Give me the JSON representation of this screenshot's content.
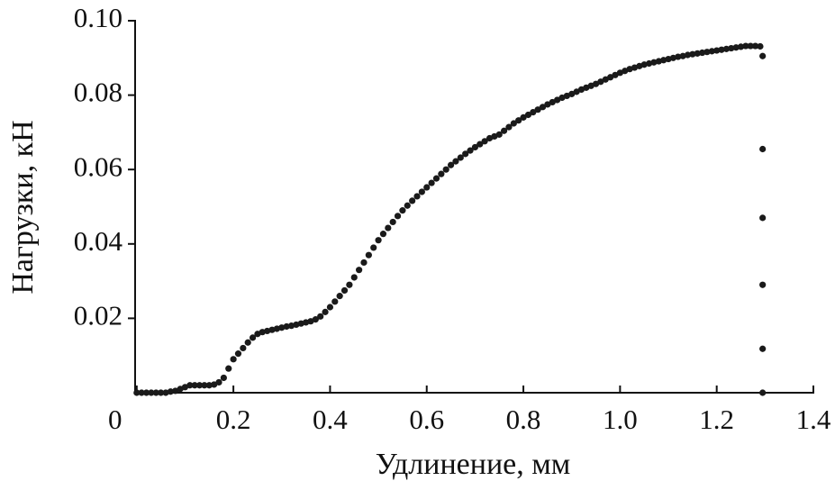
{
  "chart_data": {
    "type": "scatter",
    "xlabel": "Удлинение, мм",
    "ylabel": "Нагрузки, кН",
    "color": "#1a1a1a",
    "xlim": [
      0,
      1.4
    ],
    "xticks": [
      0,
      0.2,
      0.4,
      0.6,
      0.8,
      {
        "value": 1,
        "label": "1.0"
      },
      1.2,
      1.4
    ],
    "ylim": [
      0,
      0.1
    ],
    "yticks": [
      0.02,
      0.04,
      0.06,
      0.08,
      {
        "value": 0.1,
        "label": "0.10"
      }
    ],
    "x": [
      0,
      0.01,
      0.02,
      0.03,
      0.04,
      0.05,
      0.06,
      0.07,
      0.08,
      0.09,
      0.1,
      0.11,
      0.12,
      0.13,
      0.14,
      0.15,
      0.16,
      0.17,
      0.18,
      0.19,
      0.2,
      0.21,
      0.22,
      0.23,
      0.24,
      0.25,
      0.26,
      0.27,
      0.28,
      0.29,
      0.3,
      0.31,
      0.32,
      0.33,
      0.34,
      0.35,
      0.36,
      0.37,
      0.38,
      0.39,
      0.4,
      0.41,
      0.42,
      0.43,
      0.44,
      0.45,
      0.46,
      0.47,
      0.48,
      0.49,
      0.5,
      0.51,
      0.52,
      0.53,
      0.54,
      0.55,
      0.56,
      0.57,
      0.58,
      0.59,
      0.6,
      0.61,
      0.62,
      0.63,
      0.64,
      0.65,
      0.66,
      0.67,
      0.68,
      0.69,
      0.7,
      0.71,
      0.72,
      0.73,
      0.74,
      0.75,
      0.76,
      0.77,
      0.78,
      0.79,
      0.8,
      0.81,
      0.82,
      0.83,
      0.84,
      0.85,
      0.86,
      0.87,
      0.88,
      0.89,
      0.9,
      0.91,
      0.92,
      0.93,
      0.94,
      0.95,
      0.96,
      0.97,
      0.98,
      0.99,
      1,
      1.01,
      1.02,
      1.03,
      1.04,
      1.05,
      1.06,
      1.07,
      1.08,
      1.09,
      1.1,
      1.11,
      1.12,
      1.13,
      1.14,
      1.15,
      1.16,
      1.17,
      1.18,
      1.19,
      1.2,
      1.21,
      1.22,
      1.23,
      1.24,
      1.25,
      1.26,
      1.27,
      1.28,
      1.29,
      1.295,
      1.295,
      1.295,
      1.295,
      1.295,
      1.295
    ],
    "values": [
      0,
      0,
      0,
      0,
      0,
      0,
      0,
      0.0003,
      0.0005,
      0.001,
      0.0015,
      0.002,
      0.002,
      0.002,
      0.002,
      0.002,
      0.0022,
      0.0028,
      0.004,
      0.0065,
      0.009,
      0.0105,
      0.012,
      0.0135,
      0.0148,
      0.0158,
      0.0163,
      0.0166,
      0.0169,
      0.0172,
      0.0175,
      0.0178,
      0.018,
      0.0183,
      0.0186,
      0.0189,
      0.0192,
      0.0197,
      0.0205,
      0.0217,
      0.023,
      0.0245,
      0.026,
      0.0275,
      0.029,
      0.031,
      0.033,
      0.035,
      0.037,
      0.039,
      0.041,
      0.0427,
      0.0443,
      0.0459,
      0.0475,
      0.049,
      0.0503,
      0.0516,
      0.0528,
      0.054,
      0.0552,
      0.0564,
      0.0576,
      0.0588,
      0.06,
      0.0612,
      0.0622,
      0.0632,
      0.0642,
      0.0651,
      0.066,
      0.0668,
      0.0676,
      0.0684,
      0.0689,
      0.0694,
      0.0704,
      0.0714,
      0.0724,
      0.0732,
      0.074,
      0.0747,
      0.0754,
      0.0761,
      0.0768,
      0.0775,
      0.0781,
      0.0787,
      0.0793,
      0.0798,
      0.0803,
      0.0809,
      0.0815,
      0.082,
      0.0825,
      0.083,
      0.0836,
      0.0842,
      0.0848,
      0.0854,
      0.086,
      0.0865,
      0.087,
      0.0874,
      0.0878,
      0.0882,
      0.0885,
      0.0888,
      0.0891,
      0.0894,
      0.0897,
      0.09,
      0.0903,
      0.0905,
      0.0908,
      0.091,
      0.0912,
      0.0914,
      0.0916,
      0.0918,
      0.092,
      0.0922,
      0.0924,
      0.0926,
      0.0928,
      0.093,
      0.0932,
      0.0932,
      0.0932,
      0.0931,
      0.0905,
      0.0655,
      0.047,
      0.029,
      0.0118,
      0
    ]
  }
}
